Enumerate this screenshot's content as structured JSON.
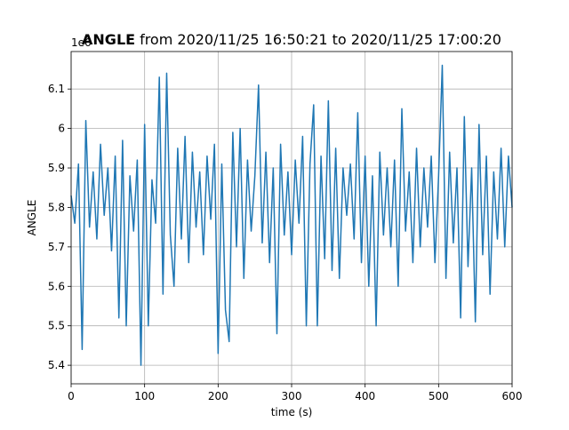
{
  "chart_data": {
    "type": "line",
    "title_bold": "ANGLE",
    "title": "from 2020/11/25 16:50:21 to 2020/11/25 17:00:20",
    "offset_label": "1e6",
    "x_label": "time (s)",
    "y_label": "ANGLE",
    "x": [
      0,
      5,
      10,
      15,
      20,
      25,
      30,
      35,
      40,
      45,
      50,
      55,
      60,
      65,
      70,
      75,
      80,
      85,
      90,
      95,
      100,
      105,
      110,
      115,
      120,
      125,
      130,
      135,
      140,
      145,
      150,
      155,
      160,
      165,
      170,
      175,
      180,
      185,
      190,
      195,
      200,
      205,
      210,
      215,
      220,
      225,
      230,
      235,
      240,
      245,
      250,
      255,
      260,
      265,
      270,
      275,
      280,
      285,
      290,
      295,
      300,
      305,
      310,
      315,
      320,
      325,
      330,
      335,
      340,
      345,
      350,
      355,
      360,
      365,
      370,
      375,
      380,
      385,
      390,
      395,
      400,
      405,
      410,
      415,
      420,
      425,
      430,
      435,
      440,
      445,
      450,
      455,
      460,
      465,
      470,
      475,
      480,
      485,
      490,
      495,
      500,
      505,
      510,
      515,
      520,
      525,
      530,
      535,
      540,
      545,
      550,
      555,
      560,
      565,
      570,
      575,
      580,
      585,
      590,
      595,
      600
    ],
    "series": [
      {
        "name": "ANGLE",
        "color": "#1f77b4",
        "values": [
          5.83,
          5.76,
          5.91,
          5.44,
          6.02,
          5.75,
          5.89,
          5.72,
          5.96,
          5.78,
          5.9,
          5.69,
          5.93,
          5.52,
          5.97,
          5.5,
          5.88,
          5.74,
          5.92,
          5.4,
          6.01,
          5.5,
          5.87,
          5.76,
          6.13,
          5.58,
          6.14,
          5.73,
          5.6,
          5.95,
          5.72,
          5.98,
          5.66,
          5.94,
          5.75,
          5.89,
          5.68,
          5.93,
          5.77,
          5.96,
          5.43,
          5.91,
          5.54,
          5.46,
          5.99,
          5.7,
          6.0,
          5.62,
          5.92,
          5.74,
          5.88,
          6.11,
          5.71,
          5.94,
          5.66,
          5.9,
          5.48,
          5.96,
          5.73,
          5.89,
          5.68,
          5.92,
          5.76,
          5.98,
          5.5,
          5.91,
          6.06,
          5.5,
          5.93,
          5.67,
          6.07,
          5.64,
          5.95,
          5.62,
          5.9,
          5.78,
          5.91,
          5.72,
          6.04,
          5.66,
          5.93,
          5.6,
          5.88,
          5.5,
          5.94,
          5.73,
          5.9,
          5.7,
          5.92,
          5.6,
          6.05,
          5.74,
          5.89,
          5.66,
          5.95,
          5.7,
          5.9,
          5.75,
          5.93,
          5.66,
          5.88,
          6.16,
          5.62,
          5.94,
          5.71,
          5.9,
          5.52,
          6.03,
          5.65,
          5.9,
          5.51,
          6.01,
          5.68,
          5.93,
          5.58,
          5.89,
          5.72,
          5.95,
          5.7,
          5.93,
          5.8
        ]
      }
    ],
    "xlim": [
      0,
      600
    ],
    "xticks": [
      0,
      100,
      200,
      300,
      400,
      500,
      600
    ],
    "ylim": [
      5.353,
      6.195
    ],
    "yticks": [
      5.4,
      5.5,
      5.6,
      5.7,
      5.8,
      5.9,
      6.0,
      6.1
    ],
    "grid": true
  }
}
